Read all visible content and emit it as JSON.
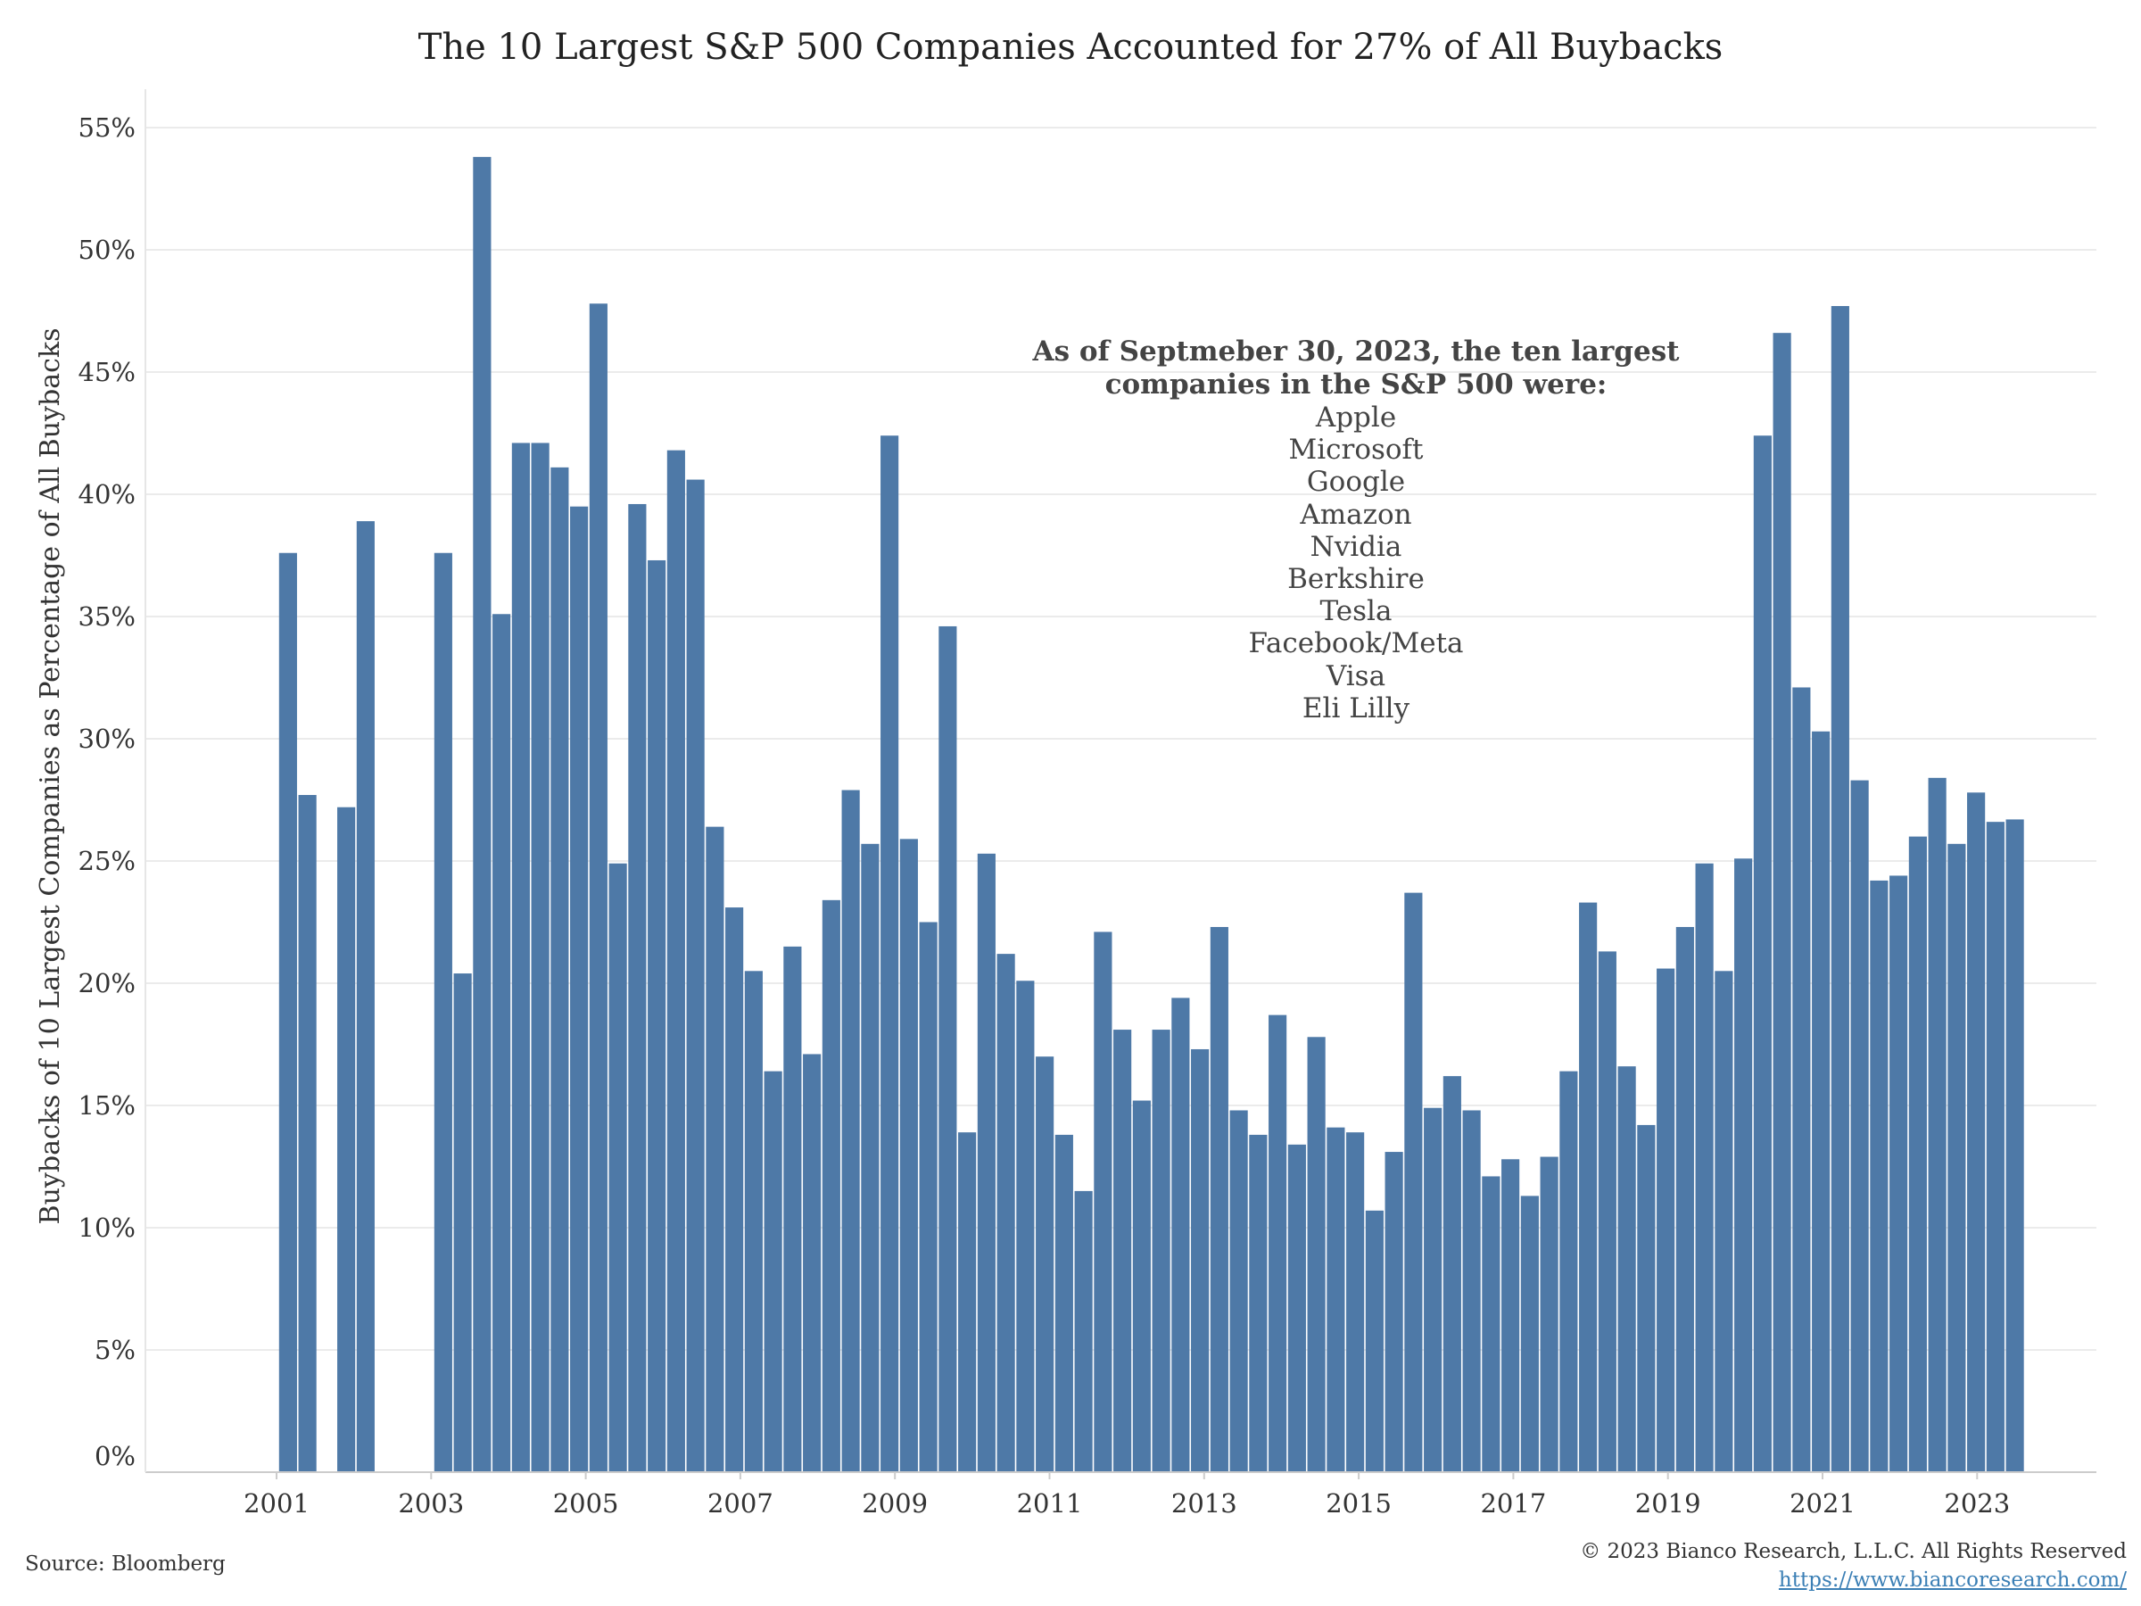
{
  "source": "Source: Bloomberg",
  "copyright": "© 2023 Bianco Research, L.L.C. All Rights Reserved",
  "website": "https://www.biancoresearch.com/",
  "annotation": {
    "heading": "As of Septmeber 30, 2023, the ten largest companies in the S&P 500 were:",
    "companies": [
      "Apple",
      "Microsoft",
      "Google",
      "Amazon",
      "Nvidia",
      "Berkshire",
      "Tesla",
      "Facebook/Meta",
      "Visa",
      "Eli Lilly"
    ]
  },
  "colors": {
    "bar": "#4e79a7",
    "grid": "#ebebeb",
    "text": "#333333",
    "link": "#3b7fb5"
  },
  "chart_data": {
    "type": "bar",
    "title": "The 10 Largest S&P 500 Companies Accounted for 27% of All Buybacks",
    "xlabel": "",
    "ylabel": "Buybacks of 10 Largest Companies as Percentage of All Buybacks",
    "ylim": [
      0,
      55
    ],
    "yticks": [
      "0%",
      "5%",
      "10%",
      "15%",
      "20%",
      "25%",
      "30%",
      "35%",
      "40%",
      "45%",
      "50%",
      "55%"
    ],
    "xticks": [
      "2001",
      "2003",
      "2005",
      "2007",
      "2009",
      "2011",
      "2013",
      "2015",
      "2017",
      "2019",
      "2021",
      "2023"
    ],
    "grid": true,
    "series": [
      {
        "values": [
          37.6,
          27.7,
          null,
          27.2,
          38.9,
          null,
          null,
          null,
          37.6,
          20.4,
          53.8,
          35.1,
          42.1,
          42.1,
          41.1,
          39.5,
          47.8,
          24.9,
          39.6,
          37.3,
          41.8,
          40.6,
          26.4,
          23.1,
          20.5,
          16.4,
          21.5,
          17.1,
          23.4,
          27.9,
          25.7,
          42.4,
          25.9,
          22.5,
          34.6,
          13.9,
          25.3,
          21.2,
          20.1,
          17.0,
          13.8,
          11.5,
          22.1,
          18.1,
          15.2,
          18.1,
          19.4,
          17.3,
          22.3,
          14.8,
          13.8,
          18.7,
          13.4,
          17.8,
          14.1,
          13.9,
          10.7,
          13.1,
          23.7,
          14.9,
          16.2,
          14.8,
          12.1,
          12.8,
          11.3,
          12.9,
          16.4,
          23.3,
          21.3,
          16.6,
          14.2,
          20.6,
          22.3,
          24.9,
          20.5,
          25.1,
          42.4,
          46.6,
          32.1,
          30.3,
          47.7,
          28.3,
          24.2,
          24.4,
          26.0,
          28.4,
          25.7,
          27.8,
          26.6,
          26.7
        ]
      }
    ],
    "x_start": "2001 Q1",
    "frequency": "quarterly"
  }
}
